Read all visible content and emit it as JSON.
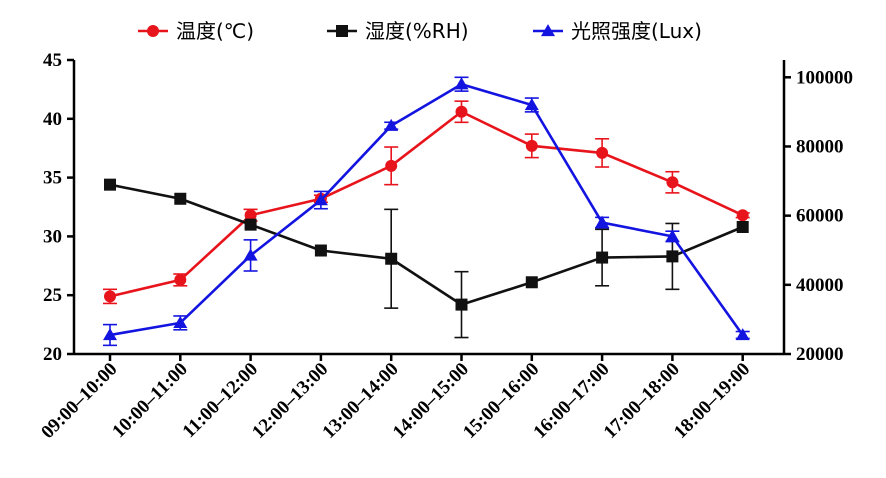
{
  "chart_data": {
    "type": "line",
    "categories": [
      "09:00–10:00",
      "10:00–11:00",
      "11:00–12:00",
      "12:00–13:00",
      "13:00–14:00",
      "14:00–15:00",
      "15:00–16:00",
      "16:00–17:00",
      "17:00–18:00",
      "18:00–19:00"
    ],
    "y_left": {
      "ylim": [
        20,
        45
      ],
      "ticks": [
        20,
        25,
        30,
        35,
        40,
        45
      ],
      "tick_labels": [
        "20",
        "25",
        "30",
        "35",
        "40",
        "45"
      ]
    },
    "y_right": {
      "ylim": [
        20000,
        105000
      ],
      "ticks": [
        20000,
        40000,
        60000,
        80000,
        100000
      ],
      "tick_labels": [
        "20000",
        "40000",
        "60000",
        "80000",
        "100000"
      ]
    },
    "series": [
      {
        "name": "温度(℃)",
        "axis": "left",
        "color": "#e8141c",
        "marker": "circle",
        "values": [
          24.9,
          26.3,
          31.8,
          33.2,
          36.0,
          40.6,
          37.7,
          37.1,
          34.6,
          31.8
        ],
        "errors": [
          0.6,
          0.5,
          0.5,
          0.3,
          1.6,
          0.9,
          1.0,
          1.2,
          0.9,
          0.2
        ]
      },
      {
        "name": "湿度(%RH)",
        "axis": "left",
        "color": "#111111",
        "marker": "square",
        "values": [
          34.4,
          33.2,
          31.0,
          28.8,
          28.1,
          24.2,
          26.1,
          28.2,
          28.3,
          30.8
        ],
        "errors": [
          0,
          0,
          0,
          0,
          4.2,
          2.8,
          0,
          2.4,
          2.8,
          0
        ]
      },
      {
        "name": "光照强度(Lux)",
        "axis": "right",
        "color": "#1414e0",
        "marker": "triangle",
        "values": [
          25500,
          29000,
          48500,
          64500,
          86000,
          98000,
          92000,
          58000,
          54000,
          25500
        ],
        "errors": [
          3000,
          2000,
          4500,
          2500,
          1000,
          2000,
          2000,
          1500,
          1500,
          1000
        ]
      }
    ],
    "legend": {
      "placement": "top-center"
    },
    "grid": false
  }
}
